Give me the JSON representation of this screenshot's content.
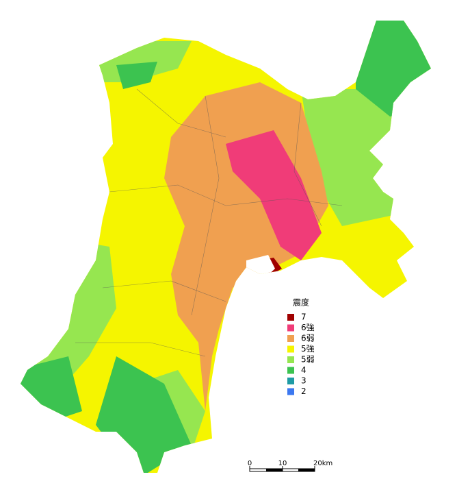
{
  "legend": {
    "title": "震度",
    "items": [
      {
        "label": "7",
        "color": "#a00000"
      },
      {
        "label": "6強",
        "color": "#f03c78"
      },
      {
        "label": "6弱",
        "color": "#f0a050"
      },
      {
        "label": "5強",
        "color": "#f5f500"
      },
      {
        "label": "5弱",
        "color": "#96e650"
      },
      {
        "label": "4",
        "color": "#3cc350"
      },
      {
        "label": "3",
        "color": "#1e9ba5"
      },
      {
        "label": "2",
        "color": "#3c78f0"
      }
    ]
  },
  "scale_bar": {
    "labels": [
      "0",
      "10",
      "20km"
    ]
  }
}
